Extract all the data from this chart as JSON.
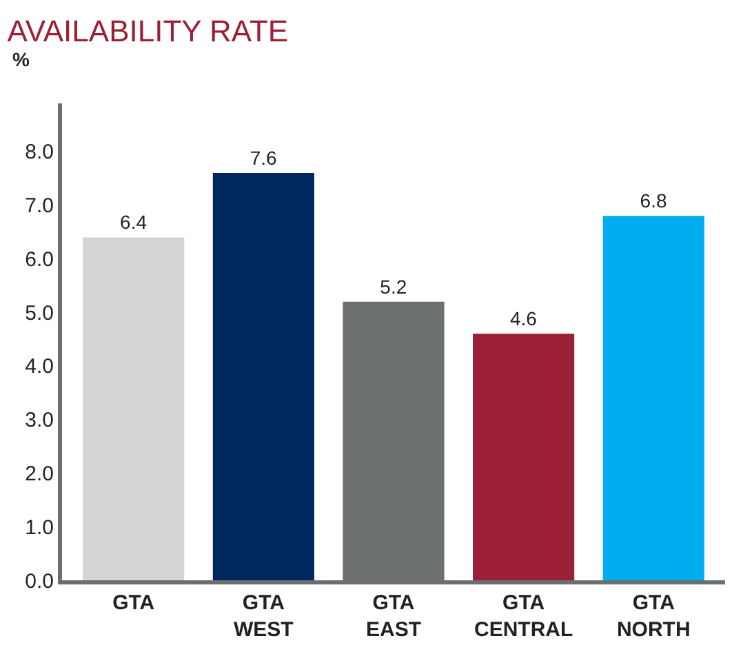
{
  "chart_data": {
    "type": "bar",
    "title": "AVAILABILITY RATE",
    "ylabel": "%",
    "categories": [
      "GTA",
      "GTA WEST",
      "GTA EAST",
      "GTA CENTRAL",
      "GTA NORTH"
    ],
    "values": [
      6.4,
      7.6,
      5.2,
      4.6,
      6.8
    ],
    "colors": [
      "#d4d5d6",
      "#00275e",
      "#6b706f",
      "#9b1f35",
      "#00aeef"
    ],
    "ylim": [
      0,
      8.9
    ],
    "yticks": [
      {
        "value": 0,
        "label": "0.0"
      },
      {
        "value": 1,
        "label": "1.0"
      },
      {
        "value": 2,
        "label": "2.0"
      },
      {
        "value": 3,
        "label": "3.0"
      },
      {
        "value": 4,
        "label": "4.0"
      },
      {
        "value": 5,
        "label": "5.0"
      },
      {
        "value": 6,
        "label": "6.0"
      },
      {
        "value": 7,
        "label": "7.0"
      },
      {
        "value": 8,
        "label": "8.0"
      }
    ],
    "data_labels": true
  }
}
